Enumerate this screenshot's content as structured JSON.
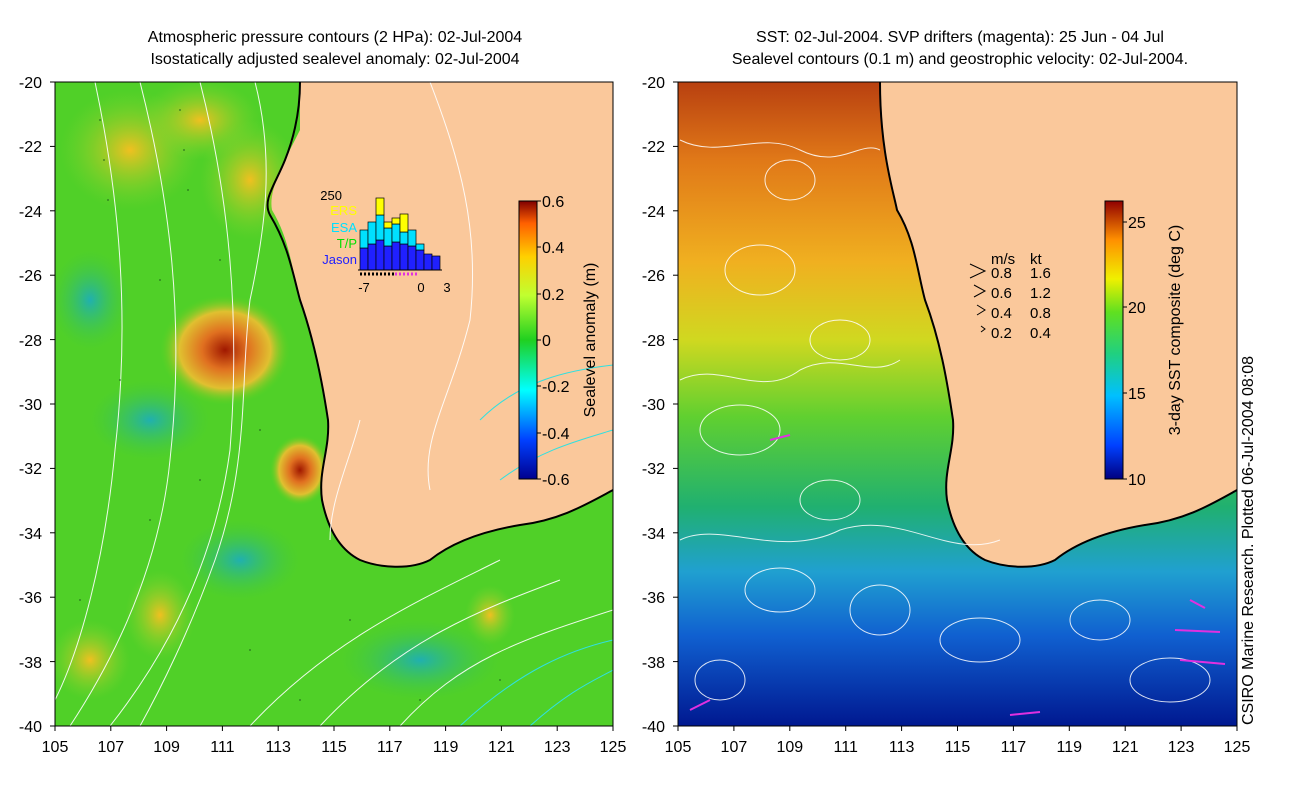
{
  "left_panel": {
    "title_line1": "Atmospheric pressure contours (2 HPa): 02-Jul-2004",
    "title_line2": "Isostatically adjusted sealevel anomaly: 02-Jul-2004",
    "y_ticks": [
      "-20",
      "-22",
      "-24",
      "-26",
      "-28",
      "-30",
      "-32",
      "-34",
      "-36",
      "-38",
      "-40"
    ],
    "x_ticks": [
      "105",
      "107",
      "109",
      "111",
      "113",
      "115",
      "117",
      "119",
      "121",
      "123",
      "125"
    ],
    "colorbar_label": "Sealevel anomaly (m)",
    "colorbar_ticks": [
      "0.6",
      "0.4",
      "0.2",
      "0",
      "-0.2",
      "-0.4",
      "-0.6"
    ],
    "inset": {
      "max_label": "250",
      "legend": [
        "ERS",
        "ESA",
        "T/P",
        "Jason"
      ],
      "legend_colors": [
        "#ffff00",
        "#00e0ff",
        "#00e000",
        "#2020ff"
      ],
      "x_labels": [
        "-7",
        "0",
        "3"
      ]
    }
  },
  "right_panel": {
    "title_line1": "SST: 02-Jul-2004. SVP drifters (magenta): 25 Jun - 04 Jul",
    "title_line2": "Sealevel contours (0.1 m) and geostrophic velocity: 02-Jul-2004.",
    "y_ticks": [
      "-20",
      "-22",
      "-24",
      "-26",
      "-28",
      "-30",
      "-32",
      "-34",
      "-36",
      "-38",
      "-40"
    ],
    "x_ticks": [
      "105",
      "107",
      "109",
      "111",
      "113",
      "115",
      "117",
      "119",
      "121",
      "123",
      "125"
    ],
    "colorbar_label": "3-day SST composite (deg C)",
    "colorbar_ticks": [
      "25",
      "20",
      "15",
      "10"
    ],
    "velocity_legend": {
      "header_ms": "m/s",
      "header_kt": "kt",
      "rows": [
        {
          "ms": "0.8",
          "kt": "1.6"
        },
        {
          "ms": "0.6",
          "kt": "1.2"
        },
        {
          "ms": "0.4",
          "kt": "0.8"
        },
        {
          "ms": "0.2",
          "kt": "0.4"
        }
      ]
    }
  },
  "colors": {
    "land": "#fac89b",
    "coast": "#000000",
    "drifter": "#e030e0"
  },
  "credit": "CSIRO Marine Research. Plotted 06-Jul-2004 08:08"
}
